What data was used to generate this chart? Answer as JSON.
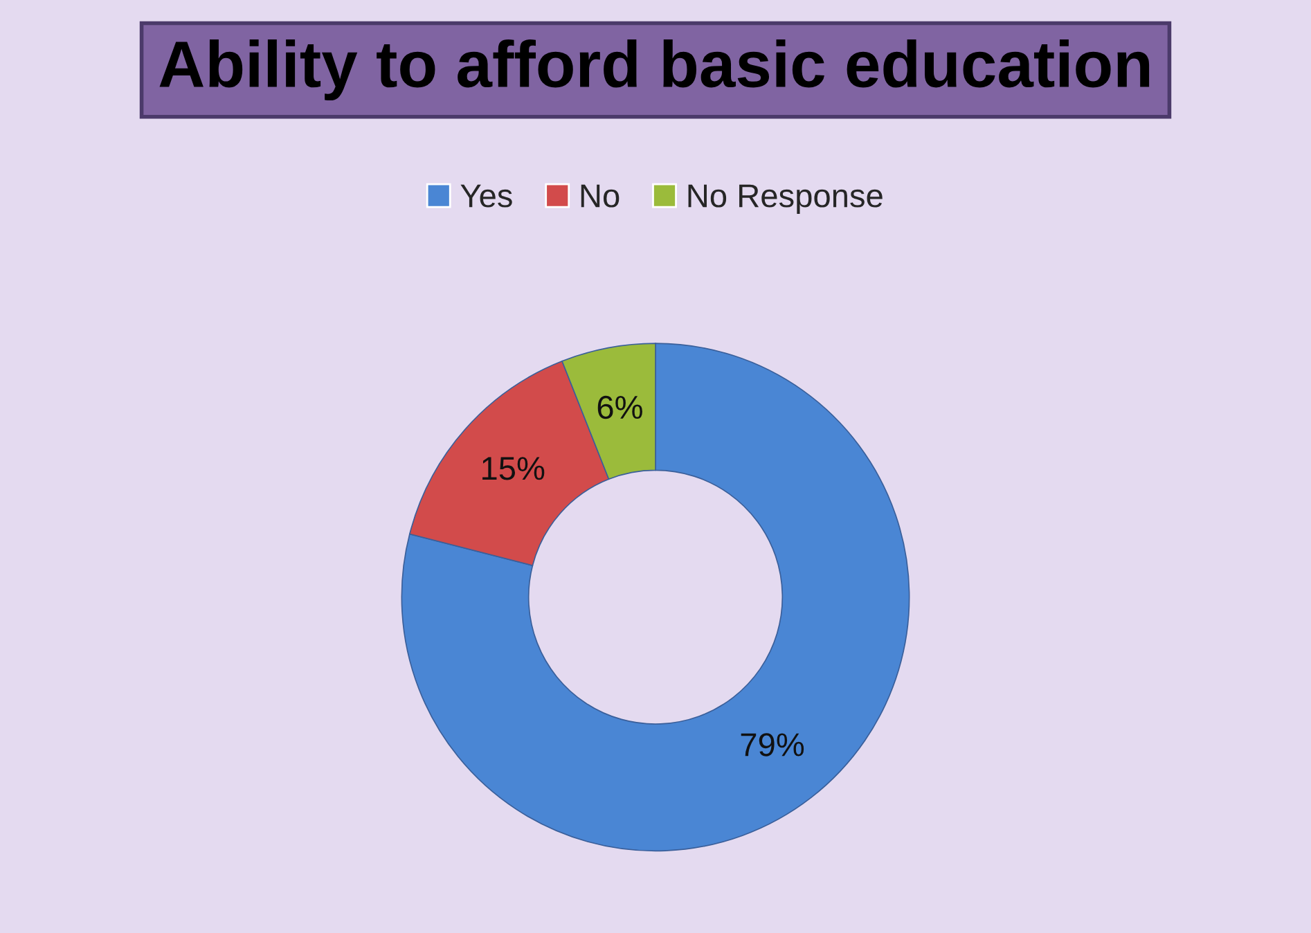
{
  "chart_data": {
    "type": "donut",
    "title": "Ability to afford basic education",
    "categories": [
      "Yes",
      "No",
      "No Response"
    ],
    "values": [
      79,
      15,
      6
    ],
    "colors": [
      "#4a86d4",
      "#d24b4b",
      "#9bbb3b"
    ],
    "value_labels": [
      "79%",
      "15%",
      "6%"
    ],
    "legend": "top"
  }
}
